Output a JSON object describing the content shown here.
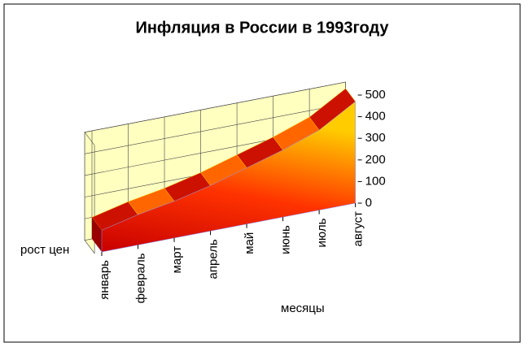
{
  "chart_data": {
    "type": "area",
    "title": "Инфляция в России в 1993году",
    "ylabel": "рост цен",
    "xlabel": "месяцы",
    "categories": [
      "январь",
      "февраль",
      "март",
      "апрель",
      "май",
      "июнь",
      "июль",
      "август"
    ],
    "values": [
      100,
      140,
      170,
      210,
      260,
      310,
      370,
      470
    ],
    "ylim": [
      0,
      500
    ],
    "yticks": [
      0,
      100,
      200,
      300,
      400,
      500
    ],
    "grid": true
  }
}
